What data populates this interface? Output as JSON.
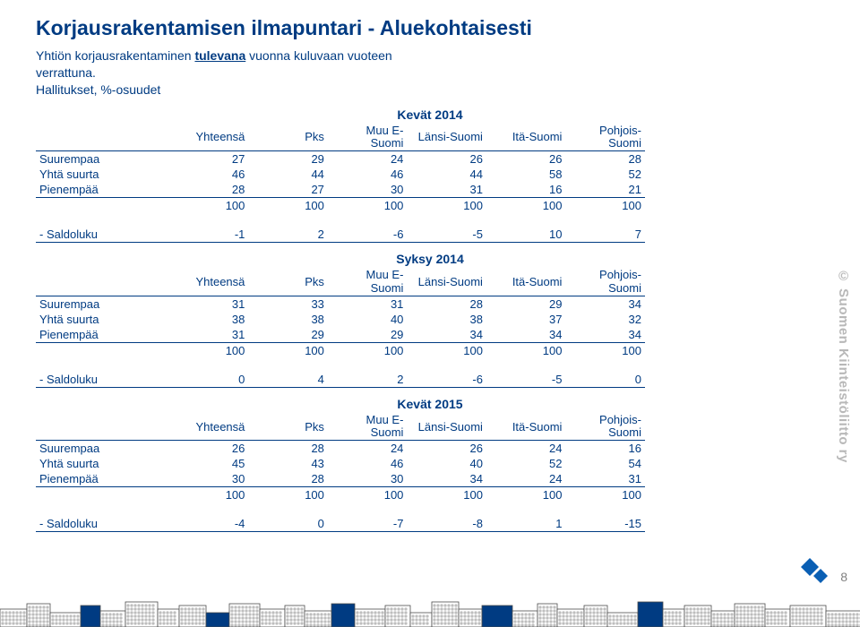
{
  "title": "Korjausrakentamisen ilmapuntari - Aluekohtaisesti",
  "intro_line1_pre": "Yhtiön korjausrakentaminen ",
  "intro_line1_u": "tulevana",
  "intro_line1_post": " vuonna kuluvaan vuoteen",
  "intro_line2": "verrattuna.",
  "intro_line3": "Hallitukset, %-osuudet",
  "side_text": "© Suomen Kiinteistöliitto ry",
  "page_number": "8",
  "headers": {
    "c1": "Yhteensä",
    "c2": "Pks",
    "c3a": "Muu E-",
    "c3b": "Suomi",
    "c4": "Länsi-Suomi",
    "c5": "Itä-Suomi",
    "c6a": "Pohjois-",
    "c6b": "Suomi"
  },
  "row_labels": {
    "suurempaa": "Suurempaa",
    "yhta": "Yhtä suurta",
    "pienempaa": "Pienempää",
    "saldo": " - Saldoluku"
  },
  "sections": [
    {
      "label": "Kevät 2014",
      "rows": {
        "suurempaa": [
          27,
          29,
          24,
          26,
          26,
          28
        ],
        "yhta": [
          46,
          44,
          46,
          44,
          58,
          52
        ],
        "pienempaa": [
          28,
          27,
          30,
          31,
          16,
          21
        ],
        "totals": [
          100,
          100,
          100,
          100,
          100,
          100
        ],
        "saldo": [
          -1,
          2,
          -6,
          -5,
          10,
          7
        ]
      }
    },
    {
      "label": "Syksy 2014",
      "rows": {
        "suurempaa": [
          31,
          33,
          31,
          28,
          29,
          34
        ],
        "yhta": [
          38,
          38,
          40,
          38,
          37,
          32
        ],
        "pienempaa": [
          31,
          29,
          29,
          34,
          34,
          34
        ],
        "totals": [
          100,
          100,
          100,
          100,
          100,
          100
        ],
        "saldo": [
          0,
          4,
          2,
          -6,
          -5,
          0
        ]
      }
    },
    {
      "label": "Kevät 2015",
      "rows": {
        "suurempaa": [
          26,
          28,
          24,
          26,
          24,
          16
        ],
        "yhta": [
          45,
          43,
          46,
          40,
          52,
          54
        ],
        "pienempaa": [
          30,
          28,
          30,
          34,
          24,
          31
        ],
        "totals": [
          100,
          100,
          100,
          100,
          100,
          100
        ],
        "saldo": [
          -4,
          0,
          -7,
          -8,
          1,
          -15
        ]
      }
    }
  ],
  "colors": {
    "accent": "#003b82",
    "skyline_outline": "#4d4d4d",
    "skyline_accent": "#003b82",
    "skyline_blank": "#ffffff"
  }
}
